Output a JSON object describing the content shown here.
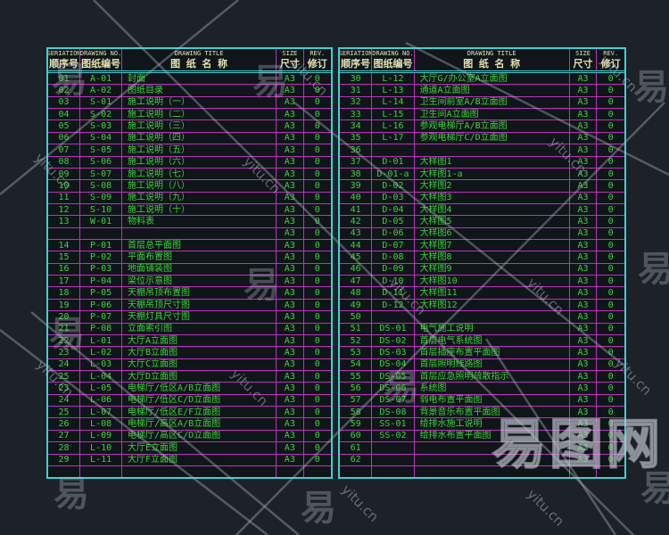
{
  "colors": {
    "background": "#1c2228",
    "table_background": "#10151a",
    "frame_cyan": "#3fd0d0",
    "grid_magenta": "#bb33bb",
    "text_green": "#3cd43c",
    "header_text": "#e3e3b0"
  },
  "table": {
    "headers": {
      "seriation_en": "SERIATION",
      "seriation_cn": "顺序号",
      "drawing_no_en": "DRAWING NO.",
      "drawing_no_cn": "图纸编号",
      "title_en": "DRAWING TITLE",
      "title_cn": "图 纸 名 称",
      "size_en": "SIZE",
      "size_cn": "尺寸",
      "rev_en": "REV.",
      "rev_cn": "修订"
    }
  },
  "left_table": {
    "rows": [
      [
        "01",
        "A-01",
        "封面",
        "A3",
        "0"
      ],
      [
        "02",
        "A-02",
        "图纸目录",
        "A3",
        "0"
      ],
      [
        "03",
        "S-01",
        "施工说明（一）",
        "A3",
        "0"
      ],
      [
        "04",
        "S-02",
        "施工说明（二）",
        "A3",
        "0"
      ],
      [
        "05",
        "S-03",
        "施工说明（三）",
        "A3",
        "0"
      ],
      [
        "06",
        "S-04",
        "施工说明（四）",
        "A3",
        "0"
      ],
      [
        "07",
        "S-05",
        "施工说明（五）",
        "A3",
        "0"
      ],
      [
        "08",
        "S-06",
        "施工说明（六）",
        "A3",
        "0"
      ],
      [
        "09",
        "S-07",
        "施工说明（七）",
        "A3",
        "0"
      ],
      [
        "10",
        "S-08",
        "施工说明（八）",
        "A3",
        "0"
      ],
      [
        "11",
        "S-09",
        "施工说明（九）",
        "A3",
        "0"
      ],
      [
        "12",
        "S-10",
        "施工说明（十）",
        "A3",
        "0"
      ],
      [
        "13",
        "W-01",
        "物料表",
        "A3",
        "0"
      ],
      [
        "",
        "",
        "",
        "A3",
        "0"
      ],
      [
        "14",
        "P-01",
        "首层总平面图",
        "A3",
        "0"
      ],
      [
        "15",
        "P-02",
        "平面布置图",
        "A3",
        "0"
      ],
      [
        "16",
        "P-03",
        "地面铺装图",
        "A3",
        "0"
      ],
      [
        "17",
        "P-04",
        "梁位示意图",
        "A3",
        "0"
      ],
      [
        "18",
        "P-05",
        "天棚吊顶布置图",
        "A3",
        "0"
      ],
      [
        "19",
        "P-06",
        "天棚吊顶尺寸图",
        "A3",
        "0"
      ],
      [
        "20",
        "P-07",
        "天棚灯具尺寸图",
        "A3",
        "0"
      ],
      [
        "21",
        "P-08",
        "立面索引图",
        "A3",
        "0"
      ],
      [
        "22",
        "L-01",
        "大厅A立面图",
        "A3",
        "0"
      ],
      [
        "23",
        "L-02",
        "大厅B立面图",
        "A3",
        "0"
      ],
      [
        "24",
        "L-03",
        "大厅C立面图",
        "A3",
        "0"
      ],
      [
        "25",
        "L-04",
        "大厅D立面图",
        "A3",
        "0"
      ],
      [
        "23",
        "L-05",
        "电梯厅/低区A/B立面图",
        "A3",
        "0"
      ],
      [
        "24",
        "L-06",
        "电梯厅/低区C/D立面图",
        "A3",
        "0"
      ],
      [
        "25",
        "L-07",
        "电梯厅/低区E/F立面图",
        "A3",
        "0"
      ],
      [
        "26",
        "L-08",
        "电梯厅/高区A/B立面图",
        "A3",
        "0"
      ],
      [
        "27",
        "L-09",
        "电梯厅/高区C/D立面图",
        "A3",
        "0"
      ],
      [
        "28",
        "L-10",
        "大厅E立面图",
        "A3",
        "0"
      ],
      [
        "29",
        "L-11",
        "大厅F立面图",
        "A3",
        "0"
      ],
      [
        "",
        "",
        "",
        "",
        ""
      ]
    ]
  },
  "right_table": {
    "rows": [
      [
        "30",
        "L-12",
        "大厅G/办公室A立面图",
        "A3",
        "0"
      ],
      [
        "31",
        "L-13",
        "通道A立面图",
        "A3",
        "0"
      ],
      [
        "32",
        "L-14",
        "卫生间前室A/B立面图",
        "A3",
        "0"
      ],
      [
        "33",
        "L-15",
        "卫生间A立面图",
        "A3",
        "0"
      ],
      [
        "34",
        "L-16",
        "参观电梯厅A/B立面图",
        "A3",
        "0"
      ],
      [
        "35",
        "L-17",
        "参观电梯厅C/D立面图",
        "A3",
        "0"
      ],
      [
        "36",
        "",
        "",
        "A3",
        "0"
      ],
      [
        "37",
        "D-01",
        "大样图1",
        "A3",
        "0"
      ],
      [
        "38",
        "D-01-a",
        "大样图1-a",
        "A3",
        "0"
      ],
      [
        "39",
        "D-02",
        "大样图2",
        "A3",
        "0"
      ],
      [
        "40",
        "D-03",
        "大样图3",
        "A3",
        "0"
      ],
      [
        "41",
        "D-04",
        "大样图4",
        "A3",
        "0"
      ],
      [
        "42",
        "D-05",
        "大样图5",
        "A3",
        "0"
      ],
      [
        "43",
        "D-06",
        "大样图6",
        "A3",
        "0"
      ],
      [
        "44",
        "D-07",
        "大样图7",
        "A3",
        "0"
      ],
      [
        "45",
        "D-08",
        "大样图8",
        "A3",
        "0"
      ],
      [
        "46",
        "D-09",
        "大样图9",
        "A3",
        "0"
      ],
      [
        "47",
        "D-10",
        "大样图10",
        "A3",
        "0"
      ],
      [
        "48",
        "D-11",
        "大样图11",
        "A3",
        "0"
      ],
      [
        "49",
        "D-12",
        "大样图12",
        "A3",
        "0"
      ],
      [
        "50",
        "",
        "",
        "A3",
        "0"
      ],
      [
        "51",
        "DS-01",
        "电气施工说明",
        "A3",
        "0"
      ],
      [
        "52",
        "DS-02",
        "首层电气系统图",
        "A3",
        "0"
      ],
      [
        "53",
        "DS-03",
        "首层插座布置平面图",
        "A3",
        "0"
      ],
      [
        "54",
        "DS-04",
        "首层照明线路图",
        "A3",
        "0"
      ],
      [
        "55",
        "DS-05",
        "首层应急照明疏散指示",
        "A3",
        "0"
      ],
      [
        "56",
        "DS-06",
        "系统图",
        "A3",
        "0"
      ],
      [
        "57",
        "DS-07",
        "弱电布置平面图",
        "A3",
        "0"
      ],
      [
        "58",
        "DS-08",
        "背景音乐布置平面图",
        "A3",
        "0"
      ],
      [
        "59",
        "SS-01",
        "给排水施工说明",
        "A3",
        "0"
      ],
      [
        "60",
        "SS-02",
        "给排水布置平面图",
        "A3",
        "0"
      ],
      [
        "61",
        "",
        "",
        "A3",
        "0"
      ],
      [
        "62",
        "",
        "",
        "A3",
        "0"
      ],
      [
        "",
        "",
        "",
        "",
        ""
      ]
    ]
  },
  "watermark": {
    "site_text": "yitu.cn",
    "logo_char": "易",
    "logo_text": "易图网"
  }
}
